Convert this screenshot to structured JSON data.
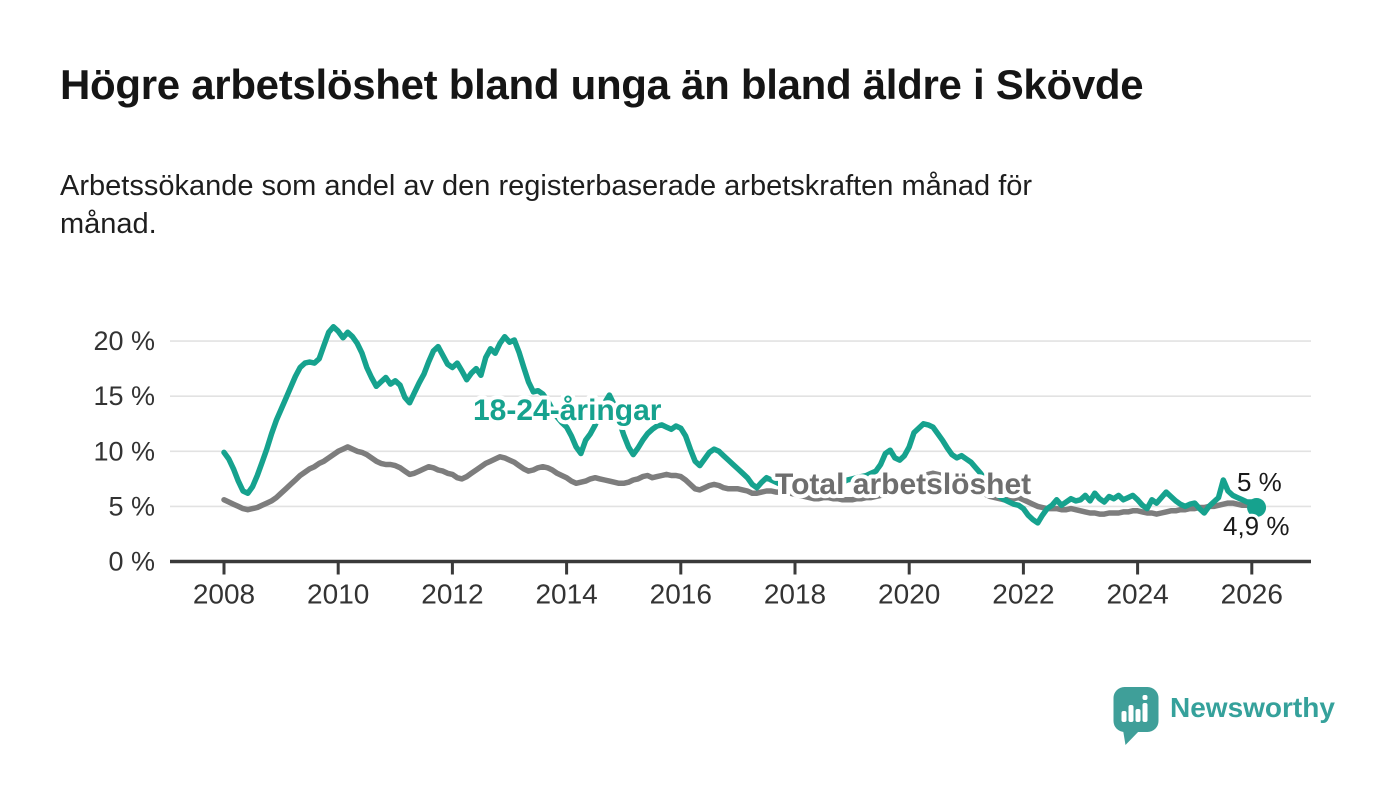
{
  "header": {
    "title": "Högre arbetslöshet bland unga än bland äldre i Skövde",
    "subtitle_line1": "Arbetssökande som andel av den registerbaserade arbetskraften månad för",
    "subtitle_line2": "månad."
  },
  "chart_data": {
    "type": "line",
    "title": "Högre arbetslöshet bland unga än bland äldre i Skövde",
    "xlabel": "",
    "ylabel": "Arbetssökande som andel av den registerbaserade arbetskraften",
    "unit": "%",
    "grid": true,
    "legend_position": "inline-labels",
    "x_start": 2008.0,
    "x_step_months": 1,
    "x_ticks": [
      2008,
      2010,
      2012,
      2014,
      2016,
      2018,
      2020,
      2022,
      2024,
      2026
    ],
    "y_ticks": [
      {
        "value": 0,
        "label": "0 %"
      },
      {
        "value": 5,
        "label": "5 %"
      },
      {
        "value": 10,
        "label": "10 %"
      },
      {
        "value": 15,
        "label": "15 %"
      },
      {
        "value": 20,
        "label": "20 %"
      }
    ],
    "ylim": [
      0,
      22
    ],
    "series": [
      {
        "name": "18-24-åringar",
        "color": "#16a28e",
        "end_label": "4,9 %",
        "end_value": 4.9,
        "values": [
          9.9,
          9.3,
          8.4,
          7.3,
          6.4,
          6.2,
          6.8,
          7.8,
          9.0,
          10.2,
          11.6,
          12.8,
          13.8,
          14.8,
          15.8,
          16.8,
          17.6,
          18.0,
          18.1,
          18.0,
          18.4,
          19.6,
          20.8,
          21.3,
          20.9,
          20.3,
          20.8,
          20.4,
          19.8,
          18.9,
          17.6,
          16.7,
          15.9,
          16.3,
          16.7,
          16.1,
          16.4,
          16.0,
          14.9,
          14.4,
          15.3,
          16.2,
          17.0,
          18.1,
          19.1,
          19.5,
          18.7,
          17.9,
          17.6,
          18.0,
          17.3,
          16.5,
          17.1,
          17.5,
          16.9,
          18.5,
          19.3,
          18.9,
          19.8,
          20.4,
          19.9,
          20.1,
          19.0,
          17.6,
          16.3,
          15.4,
          15.5,
          15.2,
          14.6,
          13.8,
          13.1,
          12.6,
          12.2,
          11.4,
          10.4,
          9.8,
          11.0,
          11.6,
          12.4,
          13.4,
          14.4,
          15.1,
          14.2,
          12.8,
          11.5,
          10.4,
          9.7,
          10.3,
          11.0,
          11.6,
          12.0,
          12.3,
          12.4,
          12.2,
          12.0,
          12.3,
          12.1,
          11.4,
          10.2,
          9.1,
          8.7,
          9.3,
          9.9,
          10.2,
          10.0,
          9.6,
          9.2,
          8.8,
          8.4,
          8.0,
          7.6,
          7.0,
          6.7,
          7.2,
          7.6,
          7.4,
          7.2,
          7.0,
          6.9,
          6.8,
          6.7,
          6.6,
          6.4,
          6.3,
          6.2,
          6.4,
          6.6,
          6.8,
          6.9,
          7.0,
          7.2,
          7.4,
          7.5,
          7.6,
          7.7,
          7.8,
          8.0,
          8.2,
          8.8,
          9.8,
          10.1,
          9.4,
          9.2,
          9.6,
          10.4,
          11.7,
          12.1,
          12.5,
          12.4,
          12.2,
          11.6,
          11.0,
          10.3,
          9.7,
          9.4,
          9.6,
          9.3,
          9.0,
          8.5,
          8.0,
          7.4,
          6.8,
          6.3,
          5.9,
          5.6,
          5.4,
          5.2,
          5.1,
          4.8,
          4.2,
          3.8,
          3.5,
          4.2,
          4.8,
          5.1,
          5.6,
          5.1,
          5.4,
          5.7,
          5.5,
          5.6,
          6.0,
          5.5,
          6.2,
          5.7,
          5.4,
          5.9,
          5.7,
          6.0,
          5.6,
          5.8,
          6.0,
          5.6,
          5.1,
          4.8,
          5.6,
          5.3,
          5.8,
          6.3,
          5.9,
          5.5,
          5.2,
          5.0,
          5.2,
          5.3,
          4.8,
          4.4,
          5.0,
          5.4,
          5.8,
          7.4,
          6.4,
          6.0,
          5.8,
          5.6,
          5.4,
          5.4,
          4.9
        ]
      },
      {
        "name": "Total arbetslöshet",
        "color": "#7d7d7d",
        "end_label": "5 %",
        "end_value": 5.0,
        "values": [
          5.6,
          5.4,
          5.2,
          5.0,
          4.8,
          4.7,
          4.8,
          4.9,
          5.1,
          5.3,
          5.5,
          5.8,
          6.2,
          6.6,
          7.0,
          7.4,
          7.8,
          8.1,
          8.4,
          8.6,
          8.9,
          9.1,
          9.4,
          9.7,
          10.0,
          10.2,
          10.4,
          10.2,
          10.0,
          9.9,
          9.7,
          9.4,
          9.1,
          8.9,
          8.8,
          8.8,
          8.7,
          8.5,
          8.2,
          7.9,
          8.0,
          8.2,
          8.4,
          8.6,
          8.5,
          8.3,
          8.2,
          8.0,
          7.9,
          7.6,
          7.5,
          7.7,
          8.0,
          8.3,
          8.6,
          8.9,
          9.1,
          9.3,
          9.5,
          9.4,
          9.2,
          9.0,
          8.7,
          8.4,
          8.2,
          8.3,
          8.5,
          8.6,
          8.5,
          8.3,
          8.0,
          7.8,
          7.6,
          7.3,
          7.1,
          7.2,
          7.3,
          7.5,
          7.6,
          7.5,
          7.4,
          7.3,
          7.2,
          7.1,
          7.1,
          7.2,
          7.4,
          7.5,
          7.7,
          7.8,
          7.6,
          7.7,
          7.8,
          7.9,
          7.8,
          7.8,
          7.7,
          7.4,
          7.0,
          6.6,
          6.5,
          6.7,
          6.9,
          7.0,
          6.9,
          6.7,
          6.6,
          6.6,
          6.6,
          6.5,
          6.4,
          6.2,
          6.2,
          6.3,
          6.4,
          6.4,
          6.3,
          6.3,
          6.2,
          6.2,
          6.1,
          6.0,
          5.9,
          5.8,
          5.7,
          5.7,
          5.8,
          5.8,
          5.7,
          5.7,
          5.6,
          5.6,
          5.6,
          5.7,
          5.7,
          5.8,
          5.8,
          5.9,
          6.0,
          6.1,
          6.2,
          6.2,
          6.3,
          6.4,
          6.6,
          6.9,
          7.3,
          7.7,
          7.9,
          8.0,
          7.9,
          7.8,
          7.6,
          7.4,
          7.2,
          7.1,
          6.9,
          6.7,
          6.5,
          6.3,
          6.1,
          5.9,
          5.8,
          5.7,
          5.6,
          5.6,
          5.7,
          5.8,
          5.6,
          5.4,
          5.2,
          5.0,
          4.9,
          4.8,
          4.8,
          4.8,
          4.7,
          4.7,
          4.8,
          4.7,
          4.6,
          4.5,
          4.4,
          4.4,
          4.3,
          4.3,
          4.4,
          4.4,
          4.4,
          4.5,
          4.5,
          4.6,
          4.6,
          4.5,
          4.4,
          4.4,
          4.3,
          4.4,
          4.5,
          4.6,
          4.6,
          4.7,
          4.7,
          4.8,
          4.8,
          4.9,
          4.9,
          5.0,
          5.0,
          5.1,
          5.2,
          5.3,
          5.3,
          5.2,
          5.1,
          5.1,
          5.0,
          5.0
        ]
      }
    ]
  },
  "footer": {
    "brand": "Newsworthy"
  },
  "colors": {
    "young_line": "#16a28e",
    "total_line": "#7d7d7d",
    "grid": "#e2e2e2",
    "axis": "#3a3a3a",
    "tick_text": "#333333",
    "title_text": "#151515",
    "end_label_text": "#1a1a1a",
    "logo": "#3f9f99",
    "logo_text": "#35a19b"
  }
}
